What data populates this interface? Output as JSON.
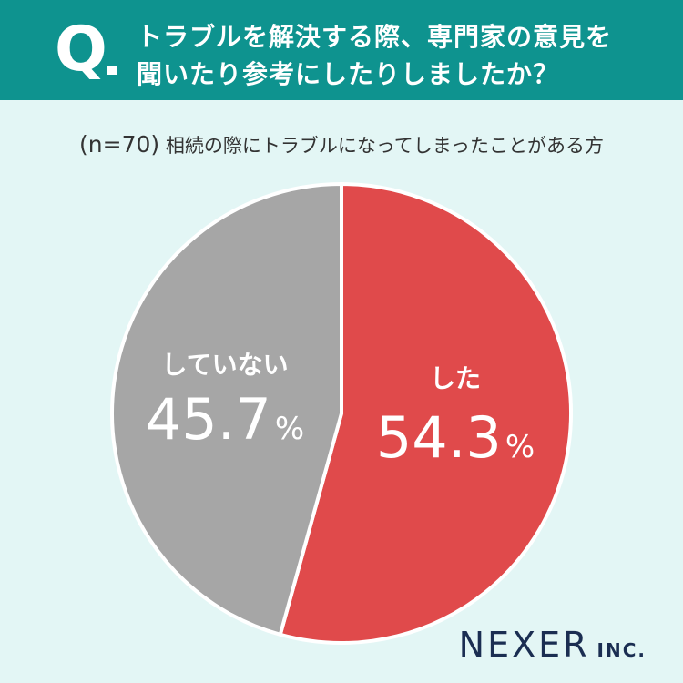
{
  "question": {
    "mark": "Q",
    "line1": "トラブルを解決する際、専門家の意見を",
    "line2": "聞いたり参考にしたりしましたか？"
  },
  "subtitle": {
    "n": "(n=70)",
    "text": "相続の際にトラブルになってしまったことがある方"
  },
  "chart_data": {
    "type": "pie",
    "categories": [
      "した",
      "していない"
    ],
    "values": [
      54.3,
      45.7
    ],
    "unit": "%",
    "start_angle_deg": 0,
    "direction": "clockwise"
  },
  "colors": {
    "header": "#0e938f",
    "background": "#e3f6f5",
    "slice_did": "#e04a4b",
    "slice_did_not": "#a6a6a6",
    "logo": "#1b2e52"
  },
  "logo": {
    "main": "NEXER",
    "suffix": "INC."
  }
}
